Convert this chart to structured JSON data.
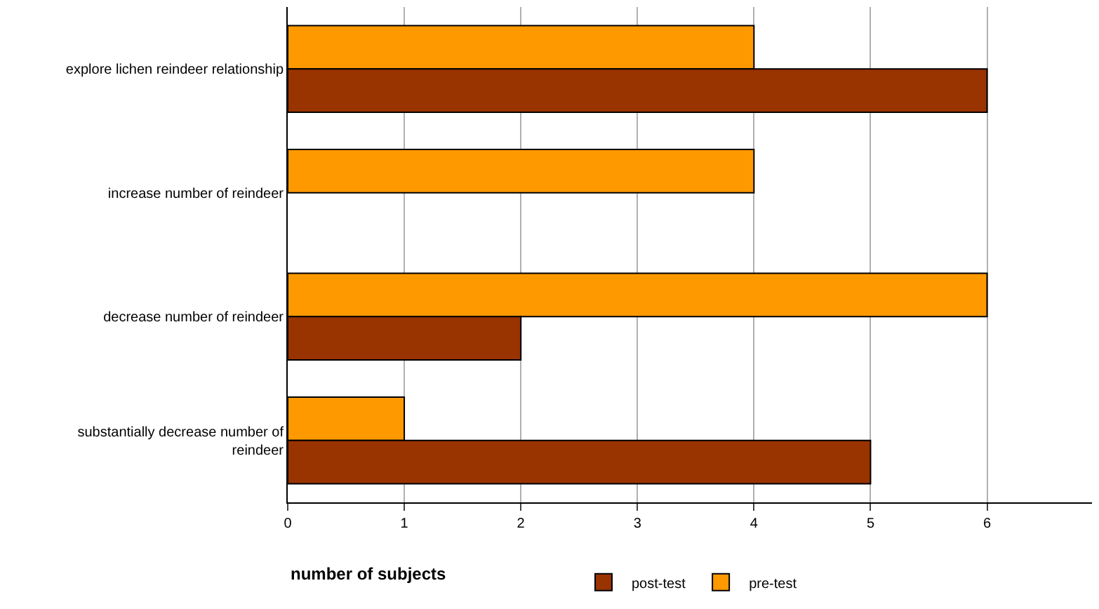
{
  "chart_data": {
    "type": "bar",
    "orientation": "horizontal",
    "xlabel": "number of subjects",
    "categories": [
      "explore lichen reindeer relationship",
      "increase number of reindeer",
      "decrease number of reindeer",
      "substantially decrease number of reindeer"
    ],
    "series": [
      {
        "name": "post-test",
        "color": "#993300",
        "values": [
          6,
          null,
          2,
          5
        ]
      },
      {
        "name": "pre-test",
        "color": "#ff9900",
        "values": [
          4,
          4,
          6,
          1
        ]
      }
    ],
    "xlim": [
      0,
      6.9
    ],
    "xticks": [
      0,
      1,
      2,
      3,
      4,
      5,
      6
    ],
    "grid": "x",
    "legend": "bottom"
  }
}
